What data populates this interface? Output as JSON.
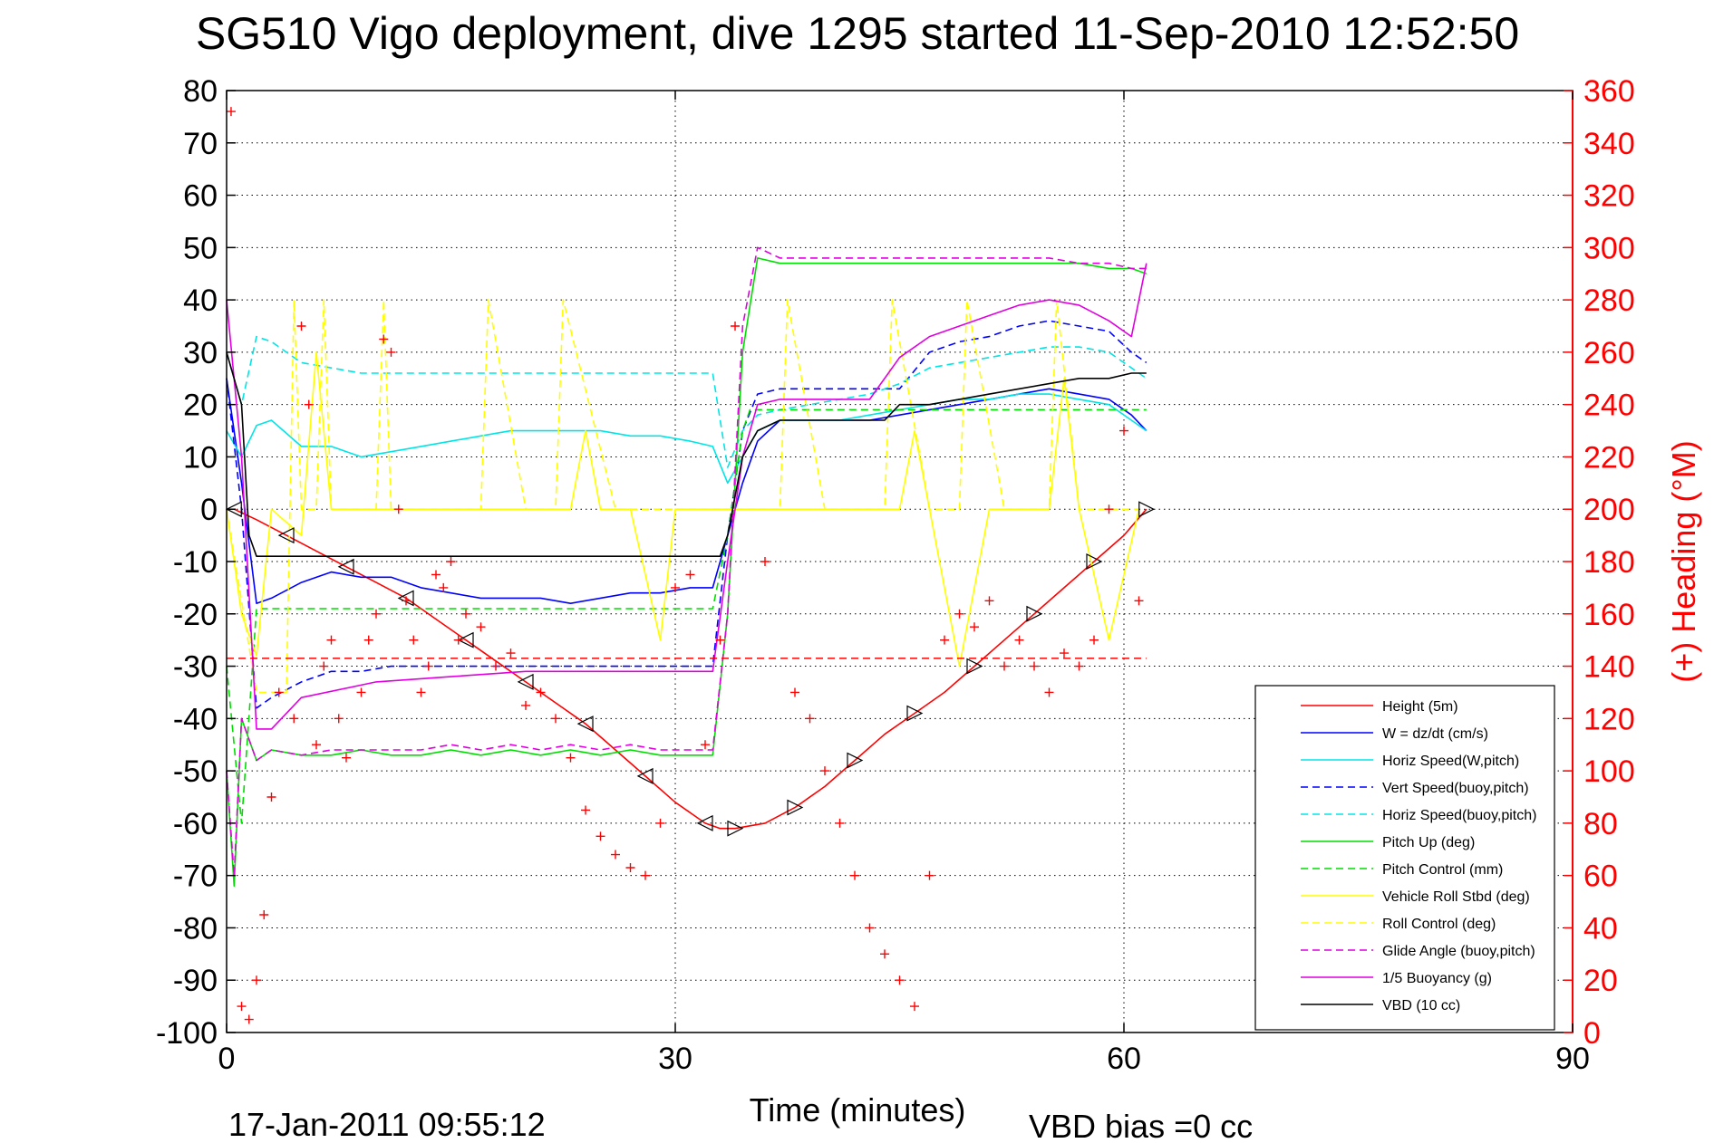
{
  "chart_data": {
    "type": "line",
    "title": "SG510 Vigo deployment, dive 1295 started 11-Sep-2010 12:52:50",
    "xlabel": "Time (minutes)",
    "ylabel_right": "(+) Heading (°M)",
    "footer_left": "17-Jan-2011 09:55:12",
    "footer_right": "VBD bias =0 cc",
    "xlim": [
      0,
      90
    ],
    "ylim": [
      -100,
      80
    ],
    "ylim_right": [
      0,
      360
    ],
    "xticks": [
      0,
      30,
      60,
      90
    ],
    "yticks": [
      -100,
      -90,
      -80,
      -70,
      -60,
      -50,
      -40,
      -30,
      -20,
      -10,
      0,
      10,
      20,
      30,
      40,
      50,
      60,
      70,
      80
    ],
    "yticks_right": [
      0,
      20,
      40,
      60,
      80,
      100,
      120,
      140,
      160,
      180,
      200,
      220,
      240,
      260,
      280,
      300,
      320,
      340,
      360
    ],
    "grid": true,
    "legend_position": "bottom-right",
    "series": [
      {
        "name": "Height (5m)",
        "color": "#ff0000",
        "style": "solid",
        "x": [
          0.5,
          2,
          4,
          6,
          8,
          10,
          12,
          14,
          16,
          18,
          20,
          22,
          24,
          26,
          28,
          30,
          32,
          33,
          34,
          36,
          38,
          40,
          42,
          44,
          46,
          48,
          50,
          52,
          54,
          56,
          58,
          60,
          61.5
        ],
        "y": [
          0,
          -2,
          -5,
          -8,
          -11,
          -14,
          -17,
          -21,
          -25,
          -29,
          -33,
          -37,
          -41,
          -46,
          -51,
          -56,
          -60,
          -61,
          -61,
          -60,
          -57,
          -53,
          -48,
          -43,
          -39,
          -35,
          -30,
          -25,
          -20,
          -15,
          -10,
          -5,
          0
        ]
      },
      {
        "name": "W = dz/dt (cm/s)",
        "color": "#0000ff",
        "style": "solid",
        "x": [
          0,
          1,
          2,
          3,
          5,
          7,
          9,
          11,
          13,
          15,
          17,
          19,
          21,
          23,
          25,
          27,
          29,
          31,
          32.5,
          33.5,
          34.5,
          35.5,
          37,
          39,
          41,
          43,
          45,
          47,
          49,
          51,
          53,
          55,
          57,
          59,
          60.5,
          61.5
        ],
        "y": [
          25,
          5,
          -18,
          -17,
          -14,
          -12,
          -13,
          -13,
          -15,
          -16,
          -17,
          -17,
          -17,
          -18,
          -17,
          -16,
          -16,
          -15,
          -15,
          -5,
          5,
          13,
          17,
          17,
          17,
          17,
          18,
          19,
          20,
          21,
          22,
          23,
          22,
          21,
          18,
          15
        ]
      },
      {
        "name": "Horiz Speed(W,pitch)",
        "color": "#00e5e5",
        "style": "solid",
        "x": [
          0,
          1,
          2,
          3,
          5,
          7,
          9,
          11,
          13,
          15,
          17,
          19,
          21,
          23,
          25,
          27,
          29,
          31,
          32.5,
          33.5,
          34.5,
          35.5,
          37,
          39,
          41,
          43,
          45,
          47,
          49,
          51,
          53,
          55,
          57,
          59,
          60.5,
          61.5
        ],
        "y": [
          15,
          10,
          16,
          17,
          12,
          12,
          10,
          11,
          12,
          13,
          14,
          15,
          15,
          15,
          15,
          14,
          14,
          13,
          12,
          5,
          10,
          15,
          17,
          17,
          17,
          18,
          19,
          20,
          21,
          21,
          22,
          22,
          21,
          20,
          17,
          15
        ]
      },
      {
        "name": "Vert Speed(buoy,pitch)",
        "color": "#0000ff",
        "style": "dashed",
        "x": [
          0,
          1,
          2,
          3,
          5,
          7,
          9,
          11,
          13,
          15,
          17,
          19,
          21,
          23,
          25,
          27,
          29,
          31,
          32.5,
          33.5,
          34.5,
          35.5,
          37,
          39,
          41,
          43,
          45,
          47,
          49,
          51,
          53,
          55,
          57,
          59,
          60.5,
          61.5
        ],
        "y": [
          25,
          0,
          -38,
          -36,
          -33,
          -31,
          -31,
          -30,
          -30,
          -30,
          -30,
          -30,
          -30,
          -30,
          -30,
          -30,
          -30,
          -30,
          -30,
          -5,
          15,
          22,
          23,
          23,
          23,
          23,
          23,
          30,
          32,
          33,
          35,
          36,
          35,
          34,
          30,
          28
        ]
      },
      {
        "name": "Horiz Speed(buoy,pitch)",
        "color": "#00e5e5",
        "style": "dashed",
        "x": [
          0,
          1,
          2,
          3,
          5,
          7,
          9,
          11,
          13,
          15,
          17,
          19,
          21,
          23,
          25,
          27,
          29,
          31,
          32.5,
          33.5,
          34.5,
          35.5,
          37,
          39,
          41,
          43,
          45,
          47,
          49,
          51,
          53,
          55,
          57,
          59,
          60.5,
          61.5
        ],
        "y": [
          30,
          20,
          33,
          32,
          28,
          27,
          26,
          26,
          26,
          26,
          26,
          26,
          26,
          26,
          26,
          26,
          26,
          26,
          26,
          8,
          15,
          18,
          19,
          20,
          21,
          22,
          24,
          27,
          28,
          29,
          30,
          31,
          31,
          30,
          27,
          25
        ]
      },
      {
        "name": "Pitch Up (deg)",
        "color": "#00dd00",
        "style": "solid",
        "x": [
          0,
          0.5,
          1,
          2,
          3,
          5,
          7,
          9,
          11,
          13,
          15,
          17,
          19,
          21,
          23,
          25,
          27,
          29,
          31,
          32.5,
          33.5,
          34.5,
          35.5,
          37,
          39,
          41,
          43,
          45,
          47,
          49,
          51,
          53,
          55,
          57,
          59,
          60.5,
          61.5
        ],
        "y": [
          -50,
          -72,
          -40,
          -48,
          -46,
          -47,
          -47,
          -46,
          -47,
          -47,
          -46,
          -47,
          -46,
          -47,
          -46,
          -47,
          -46,
          -47,
          -47,
          -47,
          -20,
          30,
          48,
          47,
          47,
          47,
          47,
          47,
          47,
          47,
          47,
          47,
          47,
          47,
          46,
          46,
          45
        ]
      },
      {
        "name": "Pitch Control (mm)",
        "color": "#00dd00",
        "style": "dashed",
        "x": [
          0,
          1,
          2,
          3,
          5,
          10,
          15,
          20,
          25,
          30,
          32.5,
          33.5,
          34.5,
          35,
          40,
          45,
          50,
          55,
          60,
          61.5
        ],
        "y": [
          -30,
          -60,
          -19,
          -19,
          -19,
          -19,
          -19,
          -19,
          -19,
          -19,
          -19,
          -5,
          15,
          19,
          19,
          19,
          19,
          19,
          19,
          19
        ]
      },
      {
        "name": "Vehicle Roll Stbd (deg)",
        "color": "#ffff00",
        "style": "solid",
        "x": [
          0,
          1,
          2,
          3,
          5,
          6,
          7,
          9,
          11,
          13,
          15,
          17,
          19,
          21,
          23,
          24,
          25,
          27,
          29,
          30,
          31,
          33,
          35,
          37,
          39,
          41,
          43,
          45,
          46,
          47,
          49,
          51,
          53,
          55,
          56,
          57,
          59,
          61
        ],
        "y": [
          0,
          -20,
          -28,
          0,
          -5,
          30,
          0,
          0,
          0,
          0,
          0,
          0,
          0,
          0,
          0,
          15,
          0,
          0,
          -25,
          0,
          0,
          0,
          0,
          0,
          0,
          0,
          0,
          0,
          15,
          0,
          -30,
          0,
          0,
          0,
          25,
          0,
          -25,
          0
        ]
      },
      {
        "name": "Roll Control (deg)",
        "color": "#ffff00",
        "style": "dashed",
        "x": [
          0,
          2,
          4,
          4.5,
          5,
          6,
          6.5,
          7,
          9,
          10,
          10.5,
          11,
          15,
          17,
          17.5,
          20,
          22,
          22.5,
          26,
          28,
          30,
          33,
          36,
          37,
          37.5,
          40,
          43,
          44,
          44.5,
          47,
          49,
          49.5,
          52,
          55,
          55.5,
          57,
          58,
          60,
          61
        ],
        "y": [
          0,
          -35,
          -35,
          40,
          0,
          0,
          40,
          0,
          0,
          0,
          40,
          0,
          0,
          0,
          40,
          0,
          0,
          40,
          0,
          0,
          0,
          0,
          0,
          0,
          40,
          0,
          0,
          0,
          40,
          0,
          0,
          40,
          0,
          0,
          40,
          0,
          0,
          0,
          0
        ]
      },
      {
        "name": "Glide Angle (buoy,pitch)",
        "color": "#e000e0",
        "style": "dashed",
        "x": [
          0,
          0.5,
          1,
          2,
          3,
          5,
          7,
          9,
          11,
          13,
          15,
          17,
          19,
          21,
          23,
          25,
          27,
          29,
          31,
          32.5,
          33.5,
          34.5,
          35.5,
          37,
          39,
          41,
          43,
          45,
          47,
          49,
          51,
          53,
          55,
          57,
          59,
          60.5,
          61.5
        ],
        "y": [
          -50,
          -70,
          -40,
          -48,
          -46,
          -47,
          -46,
          -46,
          -46,
          -46,
          -45,
          -46,
          -45,
          -46,
          -45,
          -46,
          -45,
          -46,
          -46,
          -46,
          -20,
          35,
          50,
          48,
          48,
          48,
          48,
          48,
          48,
          48,
          48,
          48,
          48,
          47,
          47,
          46,
          46
        ]
      },
      {
        "name": "1/5 Buoyancy (g)",
        "color": "#e000e0",
        "style": "solid",
        "x": [
          0,
          1,
          2,
          3,
          5,
          10,
          15,
          20,
          25,
          30,
          32.5,
          33.5,
          34.5,
          35.5,
          37,
          39,
          41,
          43,
          45,
          47,
          49,
          51,
          53,
          55,
          57,
          59,
          60.5,
          61.5
        ],
        "y": [
          40,
          10,
          -42,
          -42,
          -36,
          -33,
          -32,
          -31,
          -31,
          -31,
          -31,
          -10,
          10,
          20,
          21,
          21,
          21,
          21,
          29,
          33,
          35,
          37,
          39,
          40,
          39,
          36,
          33,
          47
        ]
      },
      {
        "name": "VBD (10 cc)",
        "color": "#000000",
        "style": "solid",
        "x": [
          0,
          1,
          1.5,
          2,
          5,
          10,
          15,
          20,
          25,
          30,
          33,
          33.5,
          34.5,
          35.5,
          37,
          39,
          41,
          43,
          44,
          45,
          47,
          49,
          51,
          53,
          55,
          57,
          59,
          60.5,
          61.5
        ],
        "y": [
          30,
          20,
          -5,
          -9,
          -9,
          -9,
          -9,
          -9,
          -9,
          -9,
          -9,
          -5,
          10,
          15,
          17,
          17,
          17,
          17,
          17,
          20,
          20,
          21,
          22,
          23,
          24,
          25,
          25,
          26,
          26
        ]
      }
    ],
    "heading": {
      "name": "(+) Heading (°M)",
      "color": "#ff0000",
      "marker": "+",
      "axis": "right",
      "x": [
        0.3,
        1.0,
        1.5,
        2.0,
        2.5,
        3.0,
        3.5,
        4.5,
        5.0,
        5.5,
        6.0,
        6.5,
        7.0,
        7.5,
        8.0,
        9.0,
        9.5,
        10.0,
        10.5,
        11.0,
        11.5,
        12.0,
        12.5,
        13.0,
        13.5,
        14.0,
        14.5,
        15.0,
        15.5,
        16.0,
        17.0,
        18.0,
        19.0,
        20.0,
        21.0,
        22.0,
        23.0,
        24.0,
        25.0,
        26.0,
        27.0,
        28.0,
        29.0,
        30.0,
        31.0,
        32.0,
        33.0,
        34.0,
        36.0,
        38.0,
        39.0,
        40.0,
        41.0,
        42.0,
        43.0,
        44.0,
        45.0,
        46.0,
        47.0,
        48.0,
        49.0,
        50.0,
        51.0,
        52.0,
        53.0,
        54.0,
        55.0,
        56.0,
        57.0,
        58.0,
        59.0,
        60.0,
        61.0
      ],
      "y": [
        352,
        10,
        5,
        20,
        45,
        90,
        130,
        120,
        270,
        240,
        110,
        140,
        150,
        120,
        105,
        130,
        150,
        160,
        265,
        260,
        200,
        165,
        150,
        130,
        140,
        175,
        170,
        180,
        150,
        160,
        155,
        140,
        145,
        125,
        130,
        120,
        105,
        85,
        75,
        68,
        63,
        60,
        80,
        170,
        175,
        110,
        150,
        270,
        180,
        130,
        120,
        100,
        80,
        60,
        40,
        30,
        20,
        10,
        60,
        150,
        160,
        155,
        165,
        140,
        150,
        140,
        130,
        145,
        140,
        150,
        200,
        230,
        165
      ]
    }
  }
}
